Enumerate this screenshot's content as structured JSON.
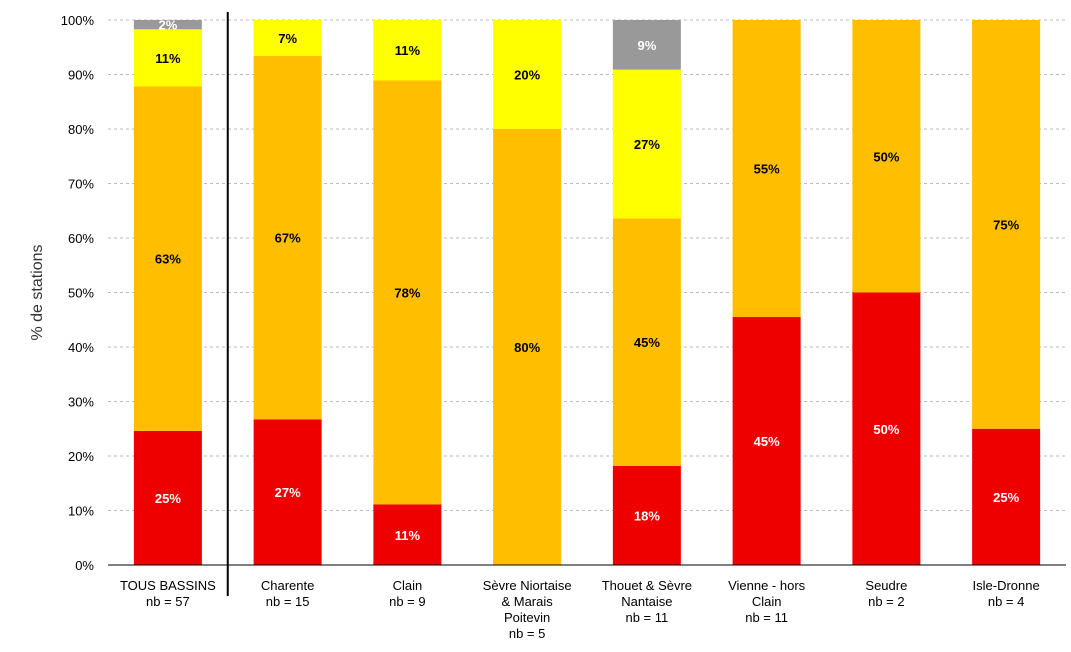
{
  "chart_data": {
    "type": "bar",
    "stacked": true,
    "ylabel": "% de stations",
    "ylim": [
      0,
      100
    ],
    "yticks": [
      "0%",
      "10%",
      "20%",
      "30%",
      "40%",
      "50%",
      "60%",
      "70%",
      "80%",
      "90%",
      "100%"
    ],
    "grid": true,
    "categories": [
      [
        "TOUS BASSINS",
        "nb = 57"
      ],
      [
        "Charente",
        "nb = 15"
      ],
      [
        "Clain",
        "nb = 9"
      ],
      [
        "Sèvre Niortaise",
        "& Marais",
        "Poitevin",
        "nb = 5"
      ],
      [
        "Thouet & Sèvre",
        "Nantaise",
        "nb = 11"
      ],
      [
        "Vienne - hors",
        "Clain",
        "nb = 11"
      ],
      [
        "Seudre",
        "nb = 2"
      ],
      [
        "Isle-Dronne",
        "nb = 4"
      ]
    ],
    "series": [
      {
        "color": "#ee0000",
        "values": [
          24.6,
          26.7,
          11.1,
          0,
          18.2,
          45.5,
          50,
          25
        ],
        "labels": [
          "25%",
          "27%",
          "11%",
          "",
          "18%",
          "45%",
          "50%",
          "25%"
        ],
        "label_color": "#ffffff"
      },
      {
        "color": "#ffbf00",
        "values": [
          63.2,
          66.7,
          77.8,
          80,
          45.4,
          54.5,
          50,
          75
        ],
        "labels": [
          "63%",
          "67%",
          "78%",
          "80%",
          "45%",
          "55%",
          "50%",
          "75%"
        ],
        "label_color": "#000000"
      },
      {
        "color": "#ffff00",
        "values": [
          10.5,
          6.6,
          11.1,
          20,
          27.3,
          0,
          0,
          0
        ],
        "labels": [
          "11%",
          "7%",
          "11%",
          "20%",
          "27%",
          "",
          "",
          ""
        ],
        "label_color": "#000000"
      },
      {
        "color": "#999999",
        "values": [
          1.7,
          0,
          0,
          0,
          9.1,
          0,
          0,
          0
        ],
        "labels": [
          "2%",
          "",
          "",
          "",
          "9%",
          "",
          "",
          ""
        ],
        "label_color": "#ffffff"
      }
    ],
    "separator_after_category": 0
  }
}
